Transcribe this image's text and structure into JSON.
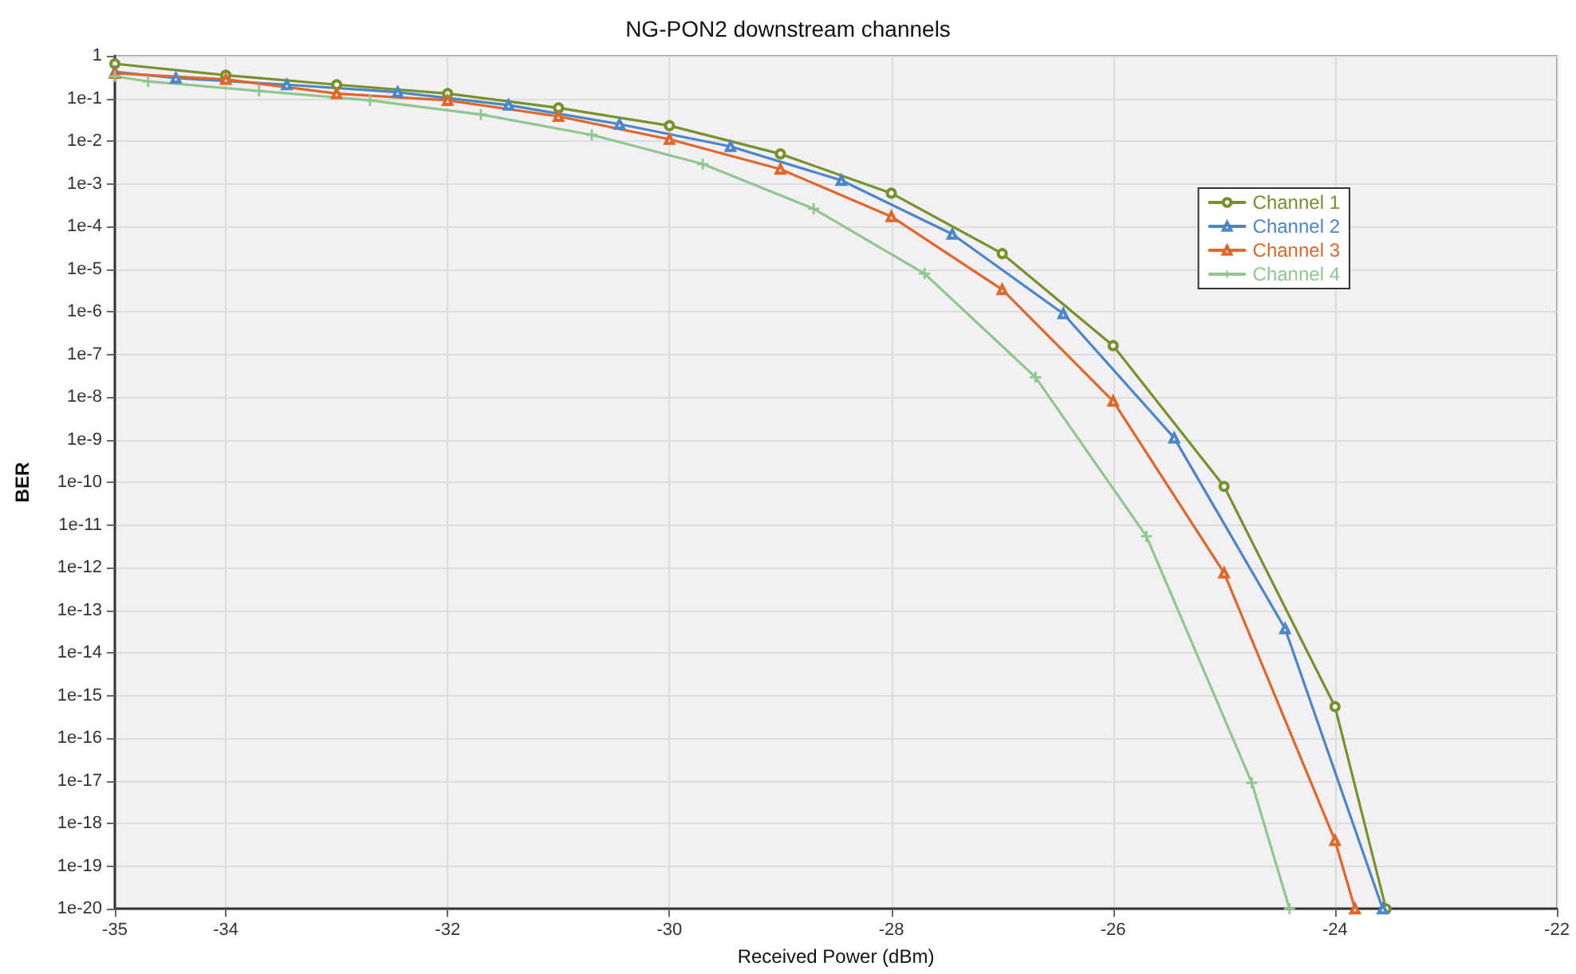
{
  "chart_data": {
    "type": "line",
    "title": "NG-PON2 downstream channels",
    "xlabel": "Received Power (dBm)",
    "ylabel": "BER",
    "log": "y",
    "grid": true,
    "legend": "top right",
    "xlim": [
      -35,
      -22
    ],
    "xticks": [
      -35,
      -34,
      -32,
      -30,
      -28,
      -26,
      -24,
      -22
    ],
    "ylim": [
      1e-20,
      1
    ],
    "yticks": [
      {
        "value": 1,
        "label": "1"
      },
      {
        "value": 0.1,
        "label": "1e-1"
      },
      {
        "value": 0.01,
        "label": "1e-2"
      },
      {
        "value": 0.001,
        "label": "1e-3"
      },
      {
        "value": 0.0001,
        "label": "1e-4"
      },
      {
        "value": 1e-05,
        "label": "1e-5"
      },
      {
        "value": 1e-06,
        "label": "1e-6"
      },
      {
        "value": 1e-07,
        "label": "1e-7"
      },
      {
        "value": 1e-08,
        "label": "1e-8"
      },
      {
        "value": 1e-09,
        "label": "1e-9"
      },
      {
        "value": 1e-10,
        "label": "1e-10"
      },
      {
        "value": 1e-11,
        "label": "1e-11"
      },
      {
        "value": 1e-12,
        "label": "1e-12"
      },
      {
        "value": 1e-13,
        "label": "1e-13"
      },
      {
        "value": 1e-14,
        "label": "1e-14"
      },
      {
        "value": 1e-15,
        "label": "1e-15"
      },
      {
        "value": 1e-16,
        "label": "1e-16"
      },
      {
        "value": 1e-17,
        "label": "1e-17"
      },
      {
        "value": 1e-18,
        "label": "1e-18"
      },
      {
        "value": 1e-19,
        "label": "1e-19"
      },
      {
        "value": 1e-20,
        "label": "1e-20"
      }
    ],
    "series": [
      {
        "name": "Channel 1",
        "color": "#76922c",
        "marker": "circle",
        "x": [
          -35,
          -34,
          -33,
          -32,
          -31,
          -30,
          -29,
          -28,
          -27,
          -26,
          -25,
          -24,
          -23.54
        ],
        "values": [
          0.65,
          0.35,
          0.21,
          0.13,
          0.06,
          0.023,
          0.005,
          0.0006,
          2.3e-05,
          1.6e-07,
          8e-11,
          5.5e-16,
          1e-20
        ]
      },
      {
        "name": "Channel 2",
        "color": "#4a86c8",
        "marker": "triangle",
        "x": [
          -35,
          -34.45,
          -33.45,
          -32.45,
          -31.45,
          -30.45,
          -29.45,
          -28.45,
          -27.45,
          -26.45,
          -25.45,
          -24.45,
          -23.57
        ],
        "values": [
          0.42,
          0.3,
          0.21,
          0.14,
          0.07,
          0.025,
          0.0075,
          0.0012,
          6.6e-05,
          9e-07,
          1.1e-09,
          3.7e-14,
          1e-20
        ]
      },
      {
        "name": "Channel 3",
        "color": "#e0662a",
        "marker": "triangle",
        "x": [
          -35,
          -34,
          -33,
          -32,
          -31,
          -30,
          -29,
          -28,
          -27,
          -26,
          -25,
          -24,
          -23.82
        ],
        "values": [
          0.39,
          0.28,
          0.13,
          0.09,
          0.038,
          0.011,
          0.0022,
          0.00017,
          3.3e-06,
          8e-09,
          7.5e-13,
          4e-19,
          1e-20
        ]
      },
      {
        "name": "Channel 4",
        "color": "#8fc78f",
        "marker": "cross",
        "x": [
          -35,
          -34.7,
          -33.7,
          -32.7,
          -31.7,
          -30.7,
          -29.7,
          -28.7,
          -27.7,
          -26.7,
          -25.7,
          -24.75,
          -24.41
        ],
        "values": [
          0.33,
          0.25,
          0.15,
          0.09,
          0.042,
          0.014,
          0.0029,
          0.00026,
          7.8e-06,
          2.9e-08,
          5.4e-12,
          9e-18,
          1e-20
        ]
      }
    ]
  }
}
